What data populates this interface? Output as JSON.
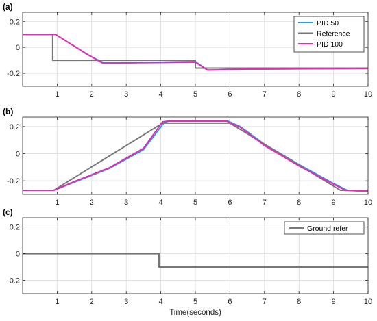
{
  "colors": {
    "pid50": "#1f9fe6",
    "reference": "#777777",
    "pid100": "#e62ab5",
    "ground": "#777777",
    "grid": "#e1e1e1",
    "axis": "#262626"
  },
  "chart_data": [
    {
      "type": "line",
      "panel_label": "(a)",
      "xlim": [
        0,
        10
      ],
      "ylim": [
        -0.3,
        0.27
      ],
      "xticks": [
        1,
        2,
        3,
        4,
        5,
        6,
        7,
        8,
        9,
        10
      ],
      "yticks": [
        -0.2,
        0,
        0.2
      ],
      "ytick_labels": [
        "-0.2",
        "0",
        "0.2"
      ],
      "grid": true,
      "legend": "top-right",
      "series": [
        {
          "name": "PID 50",
          "color_key": "pid50",
          "width": 2,
          "points": [
            [
              0,
              0.1
            ],
            [
              0.95,
              0.1
            ],
            [
              1.9,
              -0.06
            ],
            [
              2.35,
              -0.12
            ],
            [
              3.0,
              -0.12
            ],
            [
              4.9,
              -0.11
            ],
            [
              5.0,
              -0.11
            ],
            [
              5.35,
              -0.175
            ],
            [
              6.5,
              -0.168
            ],
            [
              10,
              -0.162
            ]
          ]
        },
        {
          "name": "Reference",
          "color_key": "reference",
          "width": 2,
          "points": [
            [
              0,
              0.1
            ],
            [
              0.87,
              0.1
            ],
            [
              0.87,
              -0.1
            ],
            [
              5.0,
              -0.1
            ],
            [
              5.0,
              -0.16
            ],
            [
              10,
              -0.16
            ]
          ]
        },
        {
          "name": "PID 100",
          "color_key": "pid100",
          "width": 2,
          "points": [
            [
              0,
              0.1
            ],
            [
              0.95,
              0.1
            ],
            [
              1.85,
              -0.05
            ],
            [
              2.3,
              -0.12
            ],
            [
              3.0,
              -0.12
            ],
            [
              4.9,
              -0.115
            ],
            [
              5.0,
              -0.115
            ],
            [
              5.35,
              -0.175
            ],
            [
              6.5,
              -0.168
            ],
            [
              10,
              -0.163
            ]
          ]
        }
      ]
    },
    {
      "type": "line",
      "panel_label": "(b)",
      "xlim": [
        0,
        10
      ],
      "ylim": [
        -0.3,
        0.27
      ],
      "xticks": [
        1,
        2,
        3,
        4,
        5,
        6,
        7,
        8,
        9,
        10
      ],
      "yticks": [
        -0.2,
        0,
        0.2
      ],
      "ytick_labels": [
        "-0.2",
        "0",
        "0.2"
      ],
      "grid": true,
      "series": [
        {
          "name": "PID 50",
          "color_key": "pid50",
          "width": 2,
          "points": [
            [
              0,
              -0.27
            ],
            [
              0.9,
              -0.27
            ],
            [
              1.5,
              -0.21
            ],
            [
              2.5,
              -0.11
            ],
            [
              3.5,
              0.03
            ],
            [
              4.1,
              0.23
            ],
            [
              4.3,
              0.245
            ],
            [
              5.9,
              0.245
            ],
            [
              6.3,
              0.2
            ],
            [
              7.0,
              0.07
            ],
            [
              8.0,
              -0.08
            ],
            [
              9.0,
              -0.22
            ],
            [
              9.4,
              -0.27
            ],
            [
              9.7,
              -0.275
            ],
            [
              10,
              -0.275
            ]
          ]
        },
        {
          "name": "Reference",
          "color_key": "reference",
          "width": 2,
          "points": [
            [
              0,
              -0.27
            ],
            [
              0.9,
              -0.27
            ],
            [
              4.05,
              0.225
            ],
            [
              6.0,
              0.225
            ],
            [
              9.2,
              -0.27
            ],
            [
              10,
              -0.27
            ]
          ]
        },
        {
          "name": "PID 100",
          "color_key": "pid100",
          "width": 2,
          "points": [
            [
              0,
              -0.27
            ],
            [
              0.9,
              -0.27
            ],
            [
              1.5,
              -0.205
            ],
            [
              2.5,
              -0.105
            ],
            [
              3.5,
              0.04
            ],
            [
              4.05,
              0.235
            ],
            [
              4.2,
              0.24
            ],
            [
              5.9,
              0.24
            ],
            [
              6.3,
              0.195
            ],
            [
              7.0,
              0.06
            ],
            [
              8.0,
              -0.09
            ],
            [
              9.0,
              -0.225
            ],
            [
              9.35,
              -0.27
            ],
            [
              10,
              -0.272
            ]
          ]
        }
      ]
    },
    {
      "type": "line",
      "panel_label": "(c)",
      "xlim": [
        0,
        10
      ],
      "ylim": [
        -0.3,
        0.27
      ],
      "xticks": [
        1,
        2,
        3,
        4,
        5,
        6,
        7,
        8,
        9,
        10
      ],
      "yticks": [
        -0.2,
        0,
        0.2
      ],
      "ytick_labels": [
        "-0.2",
        "0",
        "0.2"
      ],
      "grid": true,
      "xlabel": "Time(seconds)",
      "legend": "top-right",
      "series": [
        {
          "name": "Ground refer",
          "color_key": "ground",
          "width": 2.2,
          "points": [
            [
              0,
              0
            ],
            [
              3.95,
              0
            ],
            [
              3.95,
              -0.1
            ],
            [
              10,
              -0.1
            ]
          ]
        }
      ]
    }
  ]
}
